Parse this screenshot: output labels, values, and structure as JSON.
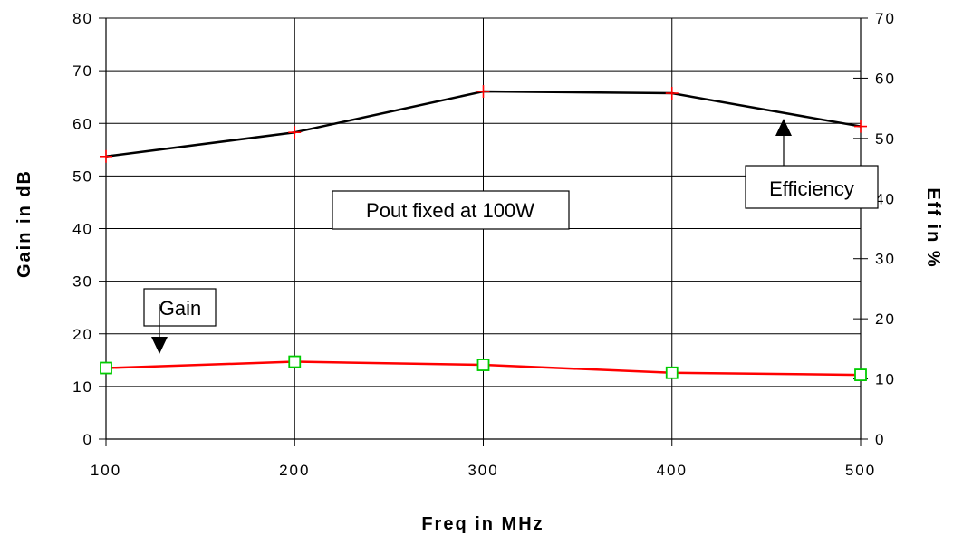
{
  "chart_data": {
    "type": "line",
    "xlabel": "Freq in MHz",
    "ylabel": "Gain in dB",
    "y2label": "Eff in %",
    "x": [
      100,
      200,
      300,
      400,
      500
    ],
    "xlim": [
      100,
      500
    ],
    "ylim": [
      0,
      80
    ],
    "y2lim": [
      0,
      70
    ],
    "grid": true,
    "x_ticks": [
      "100",
      "200",
      "300",
      "400",
      "500"
    ],
    "y_ticks": [
      "0",
      "10",
      "20",
      "30",
      "40",
      "50",
      "60",
      "70",
      "80"
    ],
    "y2_ticks": [
      "0",
      "10",
      "20",
      "30",
      "40",
      "50",
      "60",
      "70"
    ],
    "series": [
      {
        "axis": "left",
        "values": [
          13.5,
          14.7,
          14.1,
          12.6,
          12.2
        ],
        "color": "#ff0000",
        "marker": "square",
        "marker_color": "#00cc00"
      },
      {
        "axis": "right",
        "values": [
          47,
          51,
          57.8,
          57.5,
          52
        ],
        "color": "#000000",
        "marker": "plus",
        "marker_color": "#ff0000"
      }
    ],
    "annotations": {
      "pout": "Pout fixed at 100W",
      "efficiency": "Efficiency",
      "gain": "Gain"
    }
  }
}
